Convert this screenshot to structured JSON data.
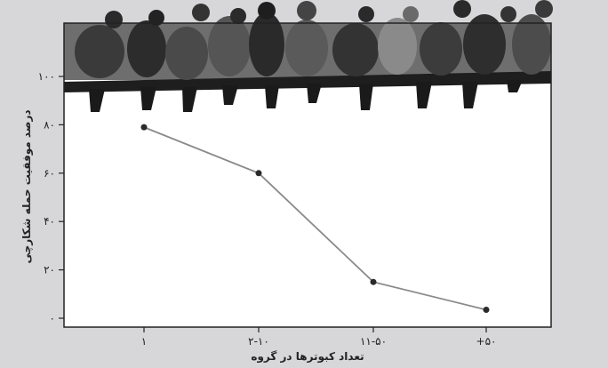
{
  "chart_data": {
    "type": "line",
    "title": "",
    "xlabel": "تعداد کبوترها در گروه",
    "ylabel": "درصد موفقیت حمله شکارچی",
    "categories": [
      "۱",
      "۲-۱۰",
      "۱۱-۵۰",
      "+۵۰"
    ],
    "series": [
      {
        "values": [
          79,
          60,
          15,
          3.5
        ]
      }
    ],
    "ylim": [
      0,
      100
    ],
    "yticks": [
      0,
      20,
      40,
      60,
      80,
      100
    ],
    "ytick_labels": [
      "۰",
      "۲۰",
      "۴۰",
      "۶۰",
      "۸۰",
      "۱۰۰"
    ],
    "grid": false,
    "colors": {
      "line": "#8a8a8a",
      "marker": "#2a2a2a",
      "plot_bg": "#ffffff",
      "page_bg": "#d7d7d9"
    },
    "decoration": "photo of pigeons perched on a branch along the top of the plot area"
  }
}
